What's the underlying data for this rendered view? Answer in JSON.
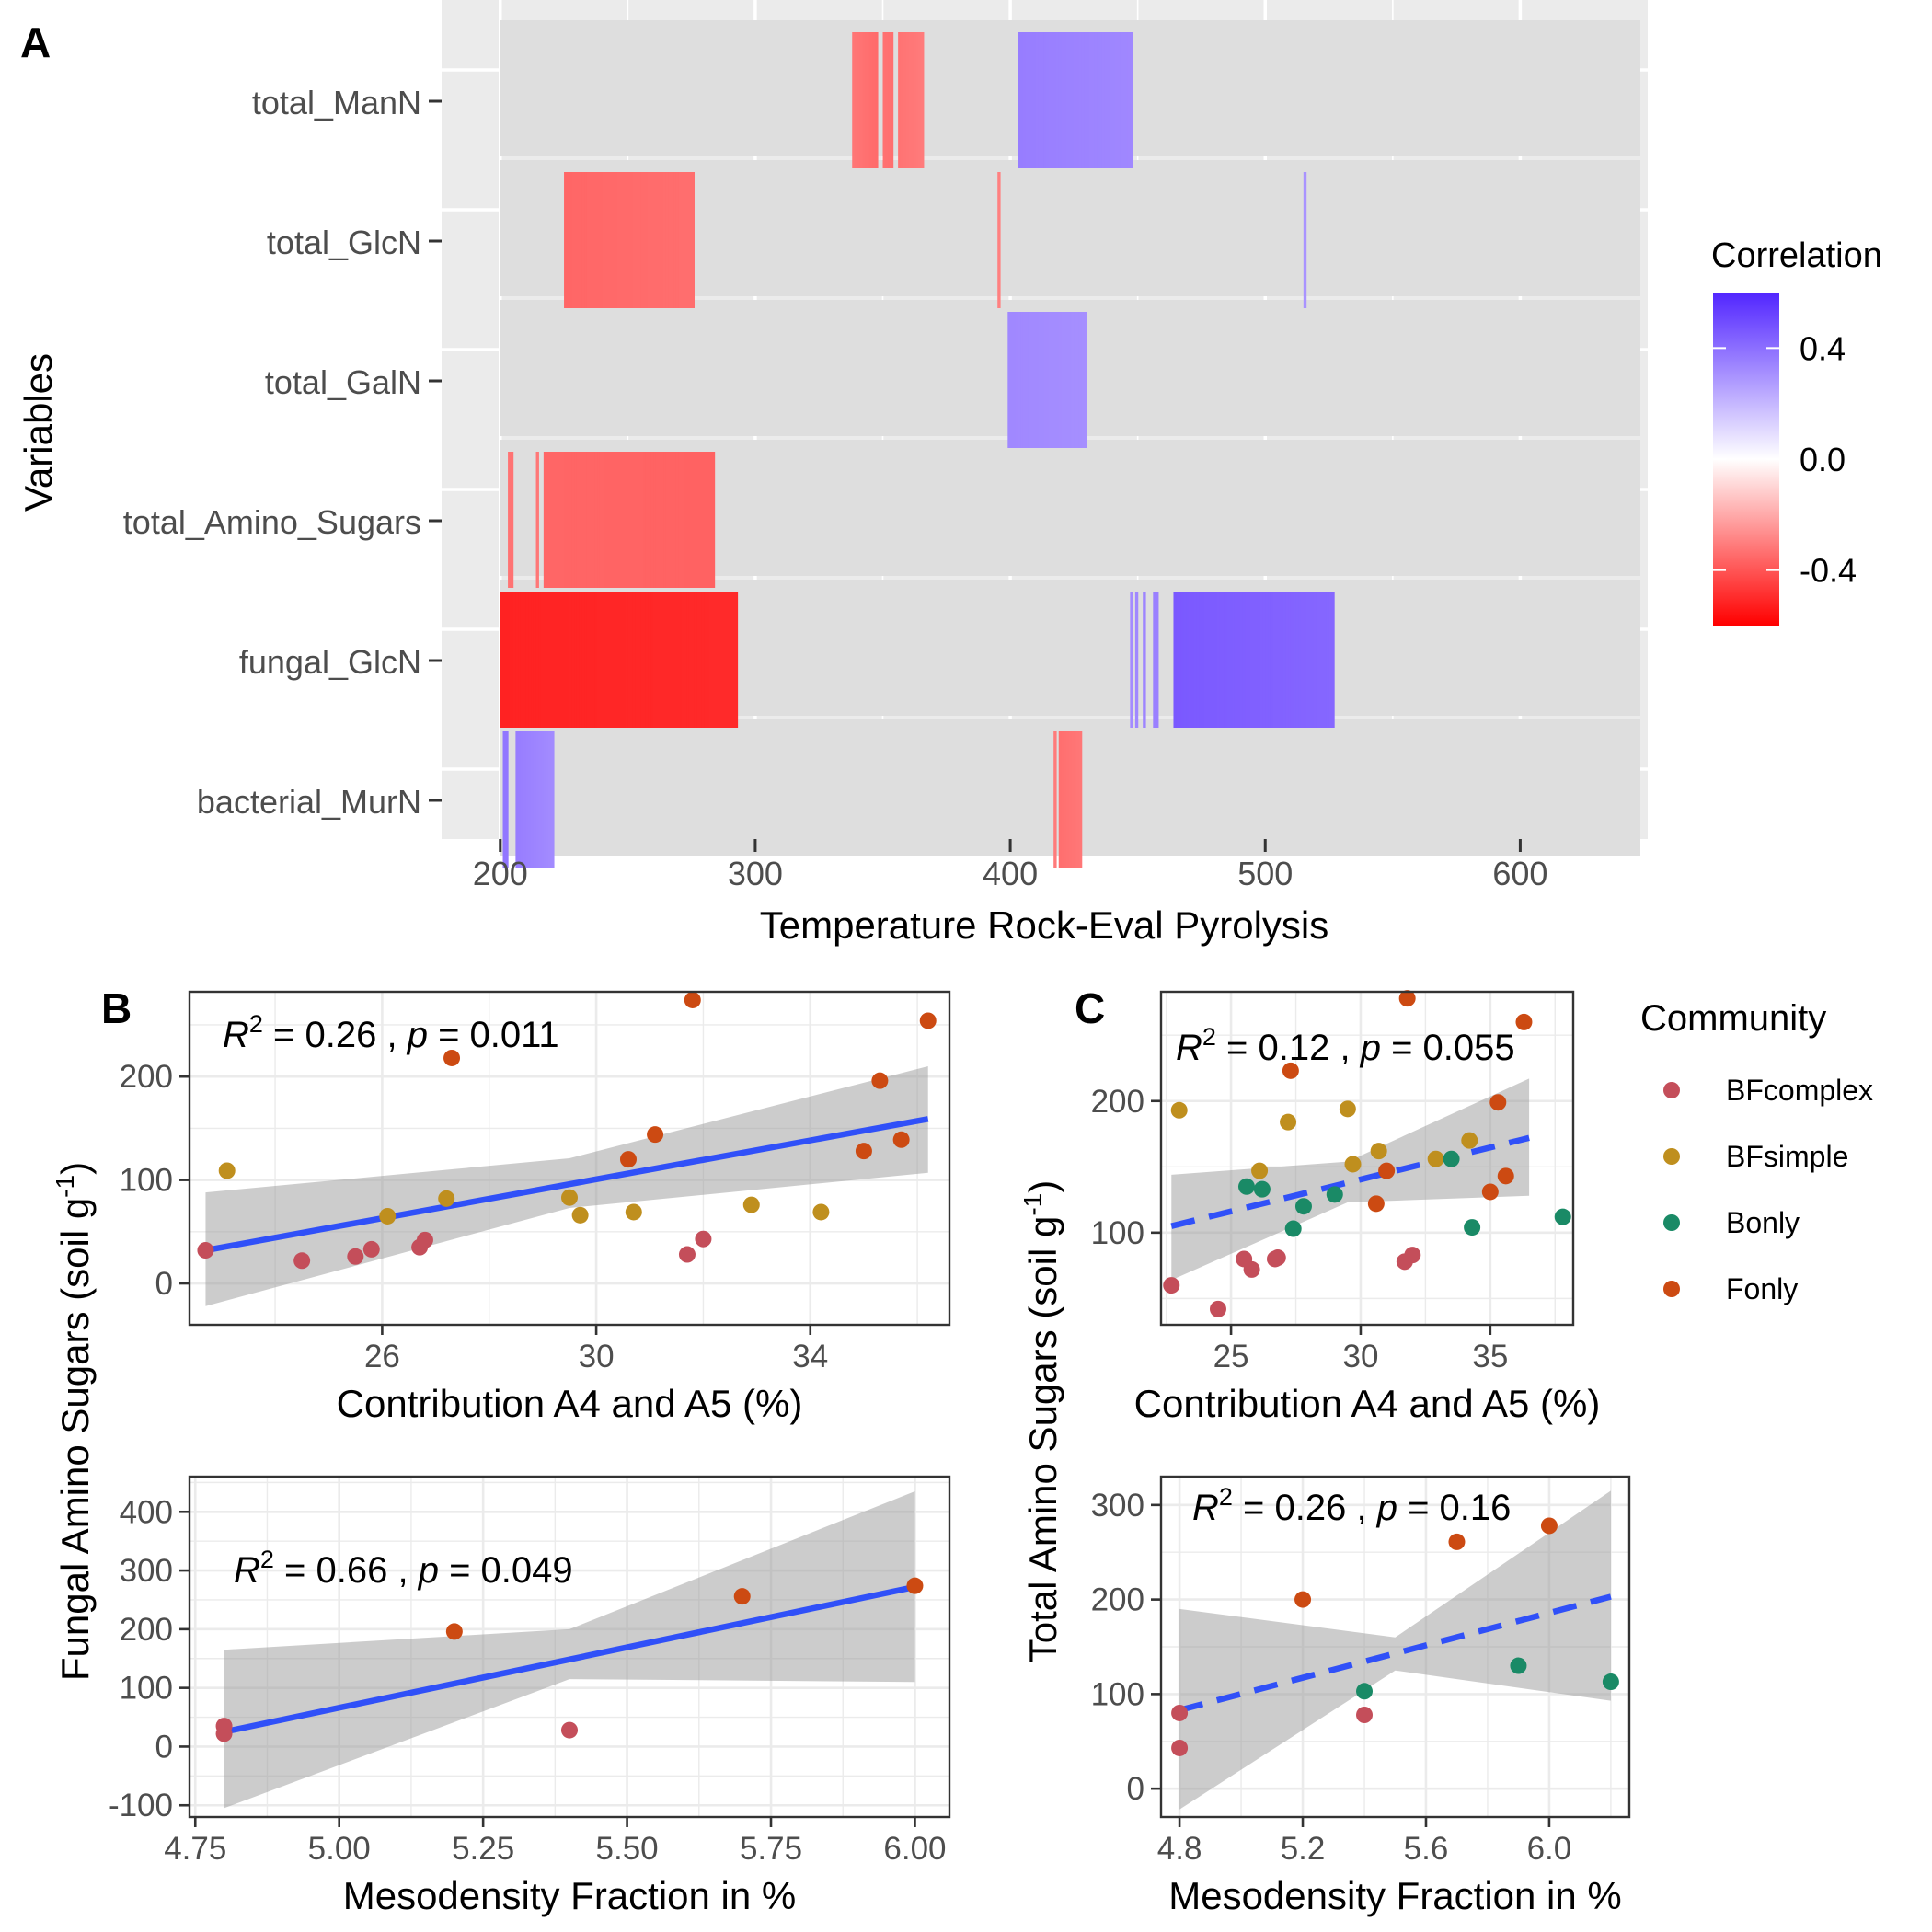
{
  "panel_labels": {
    "a": "A",
    "b": "B",
    "c": "C"
  },
  "legend_correlation": {
    "title": "Correlation",
    "ticks": [
      {
        "value": 0.4,
        "label": "0.4"
      },
      {
        "value": 0.0,
        "label": "0.0"
      },
      {
        "value": -0.4,
        "label": "-0.4"
      }
    ],
    "range": [
      -0.6,
      0.6
    ],
    "high_color": "#5226FF",
    "mid_color": "#FFFFFF",
    "low_color": "#FF0000"
  },
  "legend_community": {
    "title": "Community",
    "items": [
      {
        "name": "BFcomplex",
        "color": "#C44E5A"
      },
      {
        "name": "BFsimple",
        "color": "#BF8F1E"
      },
      {
        "name": "Bonly",
        "color": "#1A8A66"
      },
      {
        "name": "Fonly",
        "color": "#CC4A12"
      }
    ]
  },
  "shared_labels": {
    "ylabel_left": "Fungal Amino Sugars (soil g-1)",
    "ylabel_right": "Total Amino Sugars (soil g-1)"
  },
  "chart_data": [
    {
      "id": "A",
      "type": "heatmap",
      "xlabel": "Temperature Rock-Eval Pyrolysis",
      "ylabel": "Variables",
      "xlim": [
        177,
        650
      ],
      "xticks": [
        200,
        300,
        400,
        500,
        600
      ],
      "rows": [
        "total_ManN",
        "total_GlcN",
        "total_GalN",
        "total_Amino_Sugars",
        "fungal_GlcN",
        "bacterial_MurN"
      ],
      "segments": [
        {
          "row": "total_ManN",
          "x0": 338,
          "x1": 348,
          "r0": -0.32,
          "r1": -0.35
        },
        {
          "row": "total_ManN",
          "x0": 350,
          "x1": 354,
          "r0": -0.33,
          "r1": -0.34
        },
        {
          "row": "total_ManN",
          "x0": 356,
          "x1": 366,
          "r0": -0.33,
          "r1": -0.31
        },
        {
          "row": "total_ManN",
          "x0": 403,
          "x1": 448,
          "r0": 0.36,
          "r1": 0.33
        },
        {
          "row": "total_GlcN",
          "x0": 225,
          "x1": 276,
          "r0": -0.36,
          "r1": -0.34
        },
        {
          "row": "total_GlcN",
          "x0": 395,
          "x1": 396,
          "r0": -0.3,
          "r1": -0.3
        },
        {
          "row": "total_GlcN",
          "x0": 515,
          "x1": 516,
          "r0": 0.3,
          "r1": 0.3
        },
        {
          "row": "total_GalN",
          "x0": 399,
          "x1": 430,
          "r0": 0.33,
          "r1": 0.31
        },
        {
          "row": "total_Amino_Sugars",
          "x0": 203,
          "x1": 205,
          "r0": -0.33,
          "r1": -0.33
        },
        {
          "row": "total_Amino_Sugars",
          "x0": 214,
          "x1": 215,
          "r0": -0.32,
          "r1": -0.32
        },
        {
          "row": "total_Amino_Sugars",
          "x0": 217,
          "x1": 284,
          "r0": -0.36,
          "r1": -0.37
        },
        {
          "row": "fungal_GlcN",
          "x0": 200,
          "x1": 293,
          "r0": -0.52,
          "r1": -0.5
        },
        {
          "row": "fungal_GlcN",
          "x0": 447,
          "x1": 448,
          "r0": 0.32,
          "r1": 0.32
        },
        {
          "row": "fungal_GlcN",
          "x0": 449,
          "x1": 450,
          "r0": 0.33,
          "r1": 0.33
        },
        {
          "row": "fungal_GlcN",
          "x0": 452,
          "x1": 453,
          "r0": 0.34,
          "r1": 0.34
        },
        {
          "row": "fungal_GlcN",
          "x0": 456,
          "x1": 458,
          "r0": 0.35,
          "r1": 0.35
        },
        {
          "row": "fungal_GlcN",
          "x0": 464,
          "x1": 527,
          "r0": 0.46,
          "r1": 0.42
        },
        {
          "row": "bacterial_MurN",
          "x0": 201,
          "x1": 203,
          "r0": 0.38,
          "r1": 0.38
        },
        {
          "row": "bacterial_MurN",
          "x0": 206,
          "x1": 221,
          "r0": 0.36,
          "r1": 0.32
        },
        {
          "row": "bacterial_MurN",
          "x0": 417,
          "x1": 418,
          "r0": -0.31,
          "r1": -0.31
        },
        {
          "row": "bacterial_MurN",
          "x0": 419,
          "x1": 428,
          "r0": -0.34,
          "r1": -0.32
        }
      ]
    },
    {
      "id": "B-top",
      "type": "scatter",
      "xlabel": "Contribution A4 and A5 (%)",
      "xlim": [
        22.4,
        36.6
      ],
      "ylim": [
        -40,
        282
      ],
      "xticks": [
        26,
        30,
        34
      ],
      "yticks": [
        0,
        100,
        200
      ],
      "fit": {
        "x0": 22.7,
        "y0": 32,
        "x1": 36.2,
        "y1": 159,
        "dashed": false,
        "band_lo": [
          [
            22.7,
            -22
          ],
          [
            29.5,
            73
          ],
          [
            36.2,
            107
          ]
        ],
        "band_hi": [
          [
            22.7,
            88
          ],
          [
            29.5,
            121
          ],
          [
            36.2,
            210
          ]
        ]
      },
      "annotation": {
        "r2": "0.26",
        "p": "0.011"
      },
      "points": [
        {
          "x": 22.7,
          "y": 32,
          "g": "BFcomplex"
        },
        {
          "x": 24.5,
          "y": 22,
          "g": "BFcomplex"
        },
        {
          "x": 25.5,
          "y": 26,
          "g": "BFcomplex"
        },
        {
          "x": 25.8,
          "y": 33,
          "g": "BFcomplex"
        },
        {
          "x": 26.7,
          "y": 35,
          "g": "BFcomplex"
        },
        {
          "x": 26.8,
          "y": 42,
          "g": "BFcomplex"
        },
        {
          "x": 31.7,
          "y": 28,
          "g": "BFcomplex"
        },
        {
          "x": 32.0,
          "y": 43,
          "g": "BFcomplex"
        },
        {
          "x": 23.1,
          "y": 109,
          "g": "BFsimple"
        },
        {
          "x": 26.1,
          "y": 65,
          "g": "BFsimple"
        },
        {
          "x": 27.2,
          "y": 82,
          "g": "BFsimple"
        },
        {
          "x": 29.5,
          "y": 83,
          "g": "BFsimple"
        },
        {
          "x": 29.7,
          "y": 66,
          "g": "BFsimple"
        },
        {
          "x": 30.7,
          "y": 69,
          "g": "BFsimple"
        },
        {
          "x": 32.9,
          "y": 76,
          "g": "BFsimple"
        },
        {
          "x": 34.2,
          "y": 69,
          "g": "BFsimple"
        },
        {
          "x": 27.3,
          "y": 218,
          "g": "Fonly"
        },
        {
          "x": 30.6,
          "y": 120,
          "g": "Fonly"
        },
        {
          "x": 31.1,
          "y": 144,
          "g": "Fonly"
        },
        {
          "x": 31.8,
          "y": 274,
          "g": "Fonly"
        },
        {
          "x": 35.0,
          "y": 128,
          "g": "Fonly"
        },
        {
          "x": 35.3,
          "y": 196,
          "g": "Fonly"
        },
        {
          "x": 35.7,
          "y": 139,
          "g": "Fonly"
        },
        {
          "x": 36.2,
          "y": 254,
          "g": "Fonly"
        }
      ]
    },
    {
      "id": "B-bottom",
      "type": "scatter",
      "xlabel": "Mesodensity Fraction in %",
      "xlim": [
        4.74,
        6.06
      ],
      "ylim": [
        -120,
        460
      ],
      "xticks": [
        4.75,
        5.0,
        5.25,
        5.5,
        5.75,
        6.0
      ],
      "xtick_labels": [
        "4.75",
        "5.00",
        "5.25",
        "5.50",
        "5.75",
        "6.00"
      ],
      "yticks": [
        -100,
        0,
        100,
        200,
        300,
        400
      ],
      "fit": {
        "x0": 4.8,
        "y0": 25,
        "x1": 6.0,
        "y1": 272,
        "dashed": false,
        "band_lo": [
          [
            4.8,
            -105
          ],
          [
            5.4,
            115
          ],
          [
            6.0,
            110
          ]
        ],
        "band_hi": [
          [
            4.8,
            165
          ],
          [
            5.4,
            200
          ],
          [
            6.0,
            435
          ]
        ]
      },
      "annotation": {
        "r2": "0.66",
        "p": "0.049"
      },
      "points": [
        {
          "x": 4.8,
          "y": 22,
          "g": "BFcomplex"
        },
        {
          "x": 4.8,
          "y": 35,
          "g": "BFcomplex"
        },
        {
          "x": 5.4,
          "y": 28,
          "g": "BFcomplex"
        },
        {
          "x": 5.2,
          "y": 196,
          "g": "Fonly"
        },
        {
          "x": 5.7,
          "y": 256,
          "g": "Fonly"
        },
        {
          "x": 6.0,
          "y": 274,
          "g": "Fonly"
        }
      ]
    },
    {
      "id": "C-top",
      "type": "scatter",
      "xlabel": "Contribution A4 and A5 (%)",
      "xlim": [
        22.3,
        38.2
      ],
      "ylim": [
        30,
        283
      ],
      "xticks": [
        25,
        30,
        35
      ],
      "yticks": [
        100,
        200
      ],
      "fit": {
        "x0": 22.7,
        "y0": 105,
        "x1": 36.5,
        "y1": 172,
        "dashed": true,
        "band_lo": [
          [
            22.7,
            64
          ],
          [
            29.5,
            123
          ],
          [
            36.5,
            128
          ]
        ],
        "band_hi": [
          [
            22.7,
            144
          ],
          [
            29.5,
            154
          ],
          [
            36.5,
            217
          ]
        ]
      },
      "annotation": {
        "r2": "0.12",
        "p": "0.055"
      },
      "points": [
        {
          "x": 22.7,
          "y": 60,
          "g": "BFcomplex"
        },
        {
          "x": 24.5,
          "y": 42,
          "g": "BFcomplex"
        },
        {
          "x": 25.5,
          "y": 80,
          "g": "BFcomplex"
        },
        {
          "x": 25.8,
          "y": 72,
          "g": "BFcomplex"
        },
        {
          "x": 26.7,
          "y": 80,
          "g": "BFcomplex"
        },
        {
          "x": 26.8,
          "y": 81,
          "g": "BFcomplex"
        },
        {
          "x": 31.7,
          "y": 78,
          "g": "BFcomplex"
        },
        {
          "x": 32.0,
          "y": 83,
          "g": "BFcomplex"
        },
        {
          "x": 23.0,
          "y": 193,
          "g": "BFsimple"
        },
        {
          "x": 26.1,
          "y": 147,
          "g": "BFsimple"
        },
        {
          "x": 27.2,
          "y": 184,
          "g": "BFsimple"
        },
        {
          "x": 29.5,
          "y": 194,
          "g": "BFsimple"
        },
        {
          "x": 29.7,
          "y": 152,
          "g": "BFsimple"
        },
        {
          "x": 30.7,
          "y": 162,
          "g": "BFsimple"
        },
        {
          "x": 32.9,
          "y": 156,
          "g": "BFsimple"
        },
        {
          "x": 34.2,
          "y": 170,
          "g": "BFsimple"
        },
        {
          "x": 25.6,
          "y": 135,
          "g": "Bonly"
        },
        {
          "x": 26.2,
          "y": 133,
          "g": "Bonly"
        },
        {
          "x": 27.4,
          "y": 103,
          "g": "Bonly"
        },
        {
          "x": 27.8,
          "y": 120,
          "g": "Bonly"
        },
        {
          "x": 29.0,
          "y": 129,
          "g": "Bonly"
        },
        {
          "x": 33.5,
          "y": 156,
          "g": "Bonly"
        },
        {
          "x": 34.3,
          "y": 104,
          "g": "Bonly"
        },
        {
          "x": 37.8,
          "y": 112,
          "g": "Bonly"
        },
        {
          "x": 27.3,
          "y": 223,
          "g": "Fonly"
        },
        {
          "x": 30.6,
          "y": 122,
          "g": "Fonly"
        },
        {
          "x": 31.0,
          "y": 147,
          "g": "Fonly"
        },
        {
          "x": 31.8,
          "y": 278,
          "g": "Fonly"
        },
        {
          "x": 35.0,
          "y": 131,
          "g": "Fonly"
        },
        {
          "x": 35.3,
          "y": 199,
          "g": "Fonly"
        },
        {
          "x": 35.6,
          "y": 143,
          "g": "Fonly"
        },
        {
          "x": 36.3,
          "y": 260,
          "g": "Fonly"
        }
      ]
    },
    {
      "id": "C-bottom",
      "type": "scatter",
      "xlabel": "Mesodensity Fraction in %",
      "xlim": [
        4.74,
        6.26
      ],
      "ylim": [
        -30,
        330
      ],
      "xticks": [
        4.8,
        5.2,
        5.6,
        6.0
      ],
      "xtick_labels": [
        "4.8",
        "5.2",
        "5.6",
        "6.0"
      ],
      "yticks": [
        0,
        100,
        200,
        300
      ],
      "fit": {
        "x0": 4.8,
        "y0": 83,
        "x1": 6.2,
        "y1": 203,
        "dashed": true,
        "band_lo": [
          [
            4.8,
            -22
          ],
          [
            5.5,
            125
          ],
          [
            6.2,
            93
          ]
        ],
        "band_hi": [
          [
            4.8,
            190
          ],
          [
            5.5,
            160
          ],
          [
            6.2,
            315
          ]
        ]
      },
      "annotation": {
        "r2": "0.26",
        "p": "0.16"
      },
      "points": [
        {
          "x": 4.8,
          "y": 43,
          "g": "BFcomplex"
        },
        {
          "x": 4.8,
          "y": 80,
          "g": "BFcomplex"
        },
        {
          "x": 5.4,
          "y": 78,
          "g": "BFcomplex"
        },
        {
          "x": 5.4,
          "y": 103,
          "g": "Bonly"
        },
        {
          "x": 5.9,
          "y": 130,
          "g": "Bonly"
        },
        {
          "x": 6.2,
          "y": 113,
          "g": "Bonly"
        },
        {
          "x": 5.2,
          "y": 200,
          "g": "Fonly"
        },
        {
          "x": 5.7,
          "y": 261,
          "g": "Fonly"
        },
        {
          "x": 6.0,
          "y": 278,
          "g": "Fonly"
        }
      ]
    }
  ]
}
